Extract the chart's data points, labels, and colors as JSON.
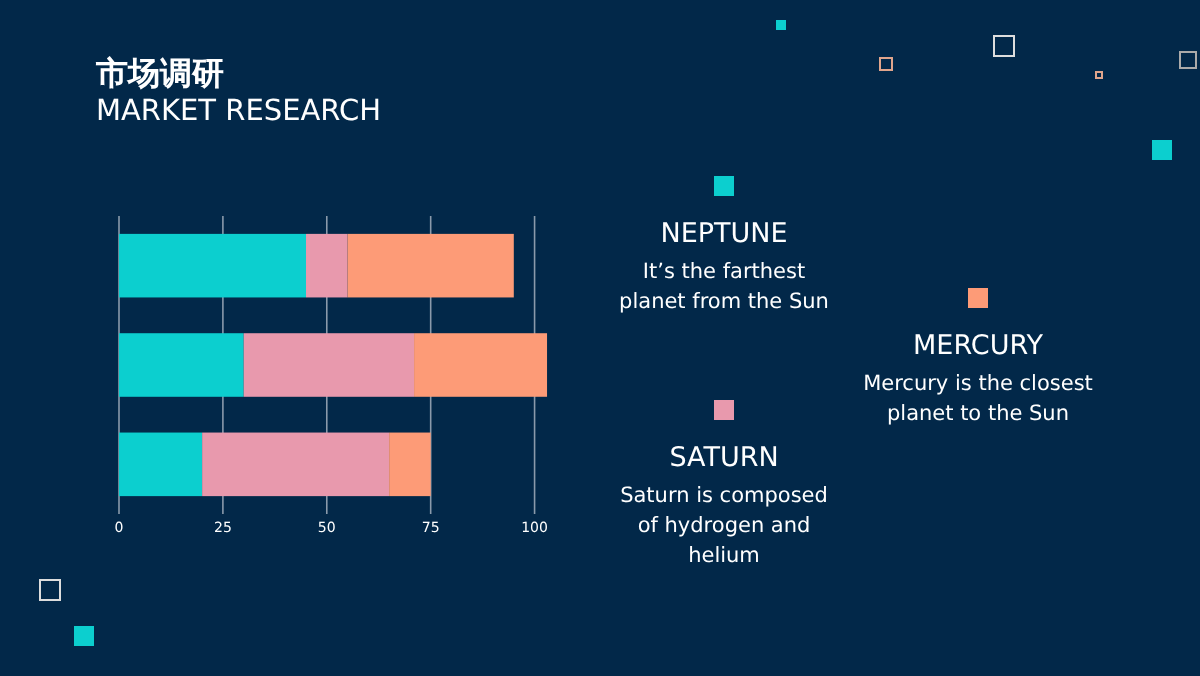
{
  "chart_data": {
    "type": "bar",
    "orientation": "horizontal",
    "stacked": true,
    "title": "市场调研",
    "subtitle": "MARKET RESEARCH",
    "categories": [
      null,
      null,
      null
    ],
    "series": [
      {
        "name": "NEPTUNE",
        "color": "#0ccfcf",
        "values": [
          45,
          30,
          20
        ]
      },
      {
        "name": "SATURN",
        "color": "#e899ad",
        "values": [
          10,
          41,
          45
        ]
      },
      {
        "name": "MERCURY",
        "color": "#fd9b77",
        "values": [
          40,
          32,
          10
        ]
      }
    ],
    "annotations": [
      "It’s the farthest\nplanet from the Sun",
      "Saturn is composed\nof hydrogen and\nhelium",
      "Mercury is the closest\nplanet to the Sun"
    ],
    "xlim": [
      0,
      104
    ],
    "xticks": [
      0,
      25,
      50,
      75,
      100
    ],
    "grid": "x",
    "legend": "right"
  }
}
